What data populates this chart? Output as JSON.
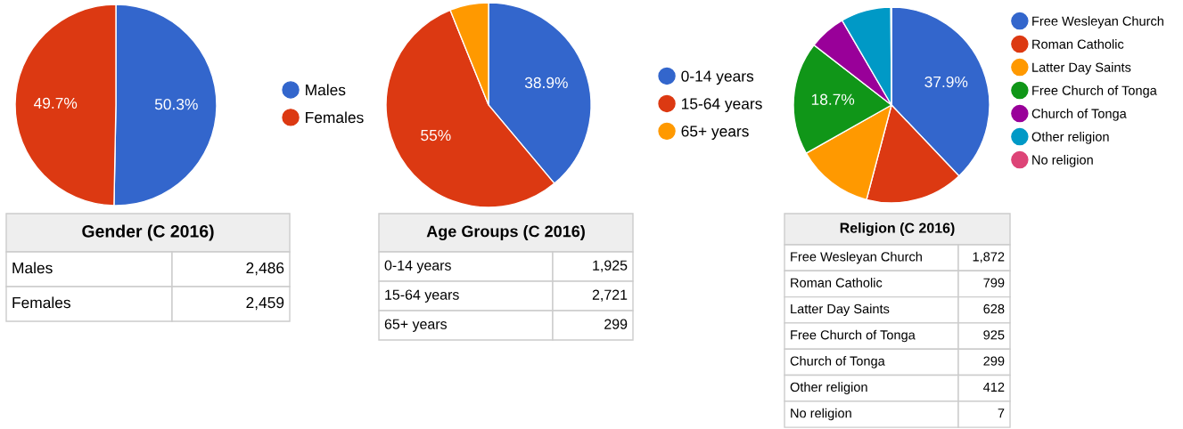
{
  "chart_data": [
    {
      "type": "pie",
      "categories": [
        "Males",
        "Females"
      ],
      "values": [
        50.3,
        49.7
      ],
      "colors": [
        "#3366cc",
        "#dc3912"
      ],
      "value_labels": [
        "50.3%",
        "49.7%"
      ],
      "legend": "right"
    },
    {
      "type": "other",
      "title": "Gender (C 2016)",
      "categories": [
        "Males",
        "Females"
      ],
      "values": [
        2486,
        2459
      ],
      "value_labels": [
        "2,486",
        "2,459"
      ]
    },
    {
      "type": "pie",
      "categories": [
        "0-14 years",
        "15-64 years",
        "65+ years"
      ],
      "values": [
        38.9,
        55,
        6.1
      ],
      "colors": [
        "#3366cc",
        "#dc3912",
        "#ff9900"
      ],
      "value_labels": [
        "38.9%",
        "55%",
        null
      ],
      "legend": "right"
    },
    {
      "type": "other",
      "title": "Age Groups (C 2016)",
      "categories": [
        "0-14 years",
        "15-64 years",
        "65+ years"
      ],
      "values": [
        1925,
        2721,
        299
      ],
      "value_labels": [
        "1,925",
        "2,721",
        "299"
      ]
    },
    {
      "type": "pie",
      "categories": [
        "Free Wesleyan Church",
        "Roman Catholic",
        "Latter Day Saints",
        "Free Church of Tonga",
        "Church of Tonga",
        "Other religion",
        "No religion"
      ],
      "values": [
        37.9,
        16.2,
        12.7,
        18.7,
        6.1,
        8.3,
        0.1
      ],
      "colors": [
        "#3366cc",
        "#dc3912",
        "#ff9900",
        "#109618",
        "#990099",
        "#0099c6",
        "#dd4477"
      ],
      "value_labels": [
        "37.9%",
        null,
        null,
        "18.7%",
        null,
        null,
        null
      ],
      "legend": "right"
    },
    {
      "type": "other",
      "title": "Religion (C 2016)",
      "categories": [
        "Free Wesleyan Church",
        "Roman Catholic",
        "Latter Day Saints",
        "Free Church of Tonga",
        "Church of Tonga",
        "Other religion",
        "No religion"
      ],
      "values": [
        1872,
        799,
        628,
        925,
        299,
        412,
        7
      ],
      "value_labels": [
        "1,872",
        "799",
        "628",
        "925",
        "299",
        "412",
        "7"
      ]
    }
  ]
}
